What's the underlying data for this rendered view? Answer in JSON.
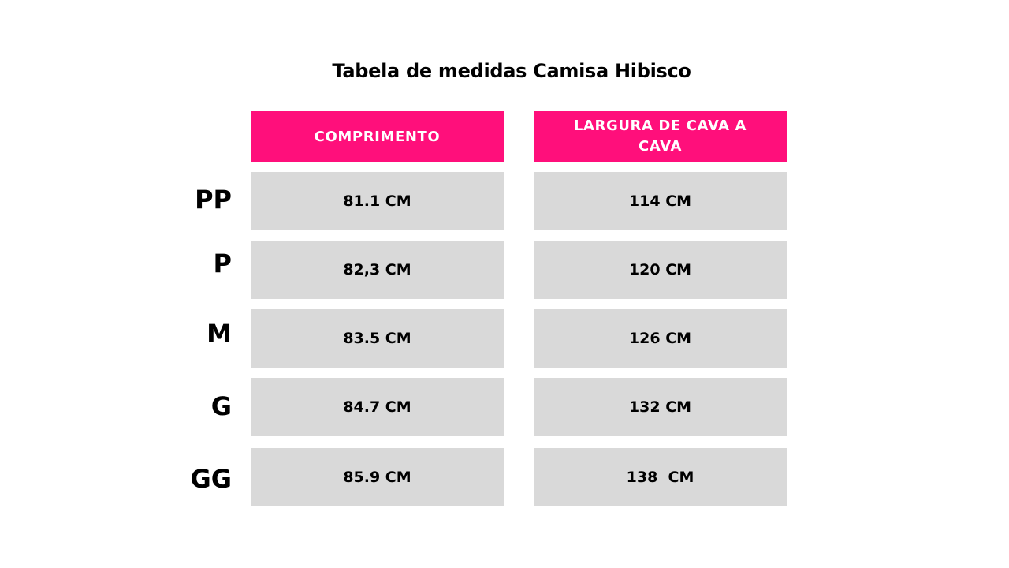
{
  "title": "Tabela de medidas Camisa Hibisco",
  "columns": [
    "COMPRIMENTO",
    "LARGURA DE CAVA A CAVA"
  ],
  "colors": {
    "header_bg": "#ff0f7b",
    "header_text": "#ffffff",
    "cell_bg": "#d9d9d9",
    "text": "#000000"
  },
  "rows": [
    {
      "size": "PP",
      "comprimento": "81.1 CM",
      "largura": "114 CM"
    },
    {
      "size": "P",
      "comprimento": "82,3 CM",
      "largura": "120 CM"
    },
    {
      "size": "M",
      "comprimento": "83.5 CM",
      "largura": "126 CM"
    },
    {
      "size": "G",
      "comprimento": "84.7 CM",
      "largura": "132 CM"
    },
    {
      "size": "GG",
      "comprimento": "85.9 CM",
      "largura": "138  CM"
    }
  ]
}
